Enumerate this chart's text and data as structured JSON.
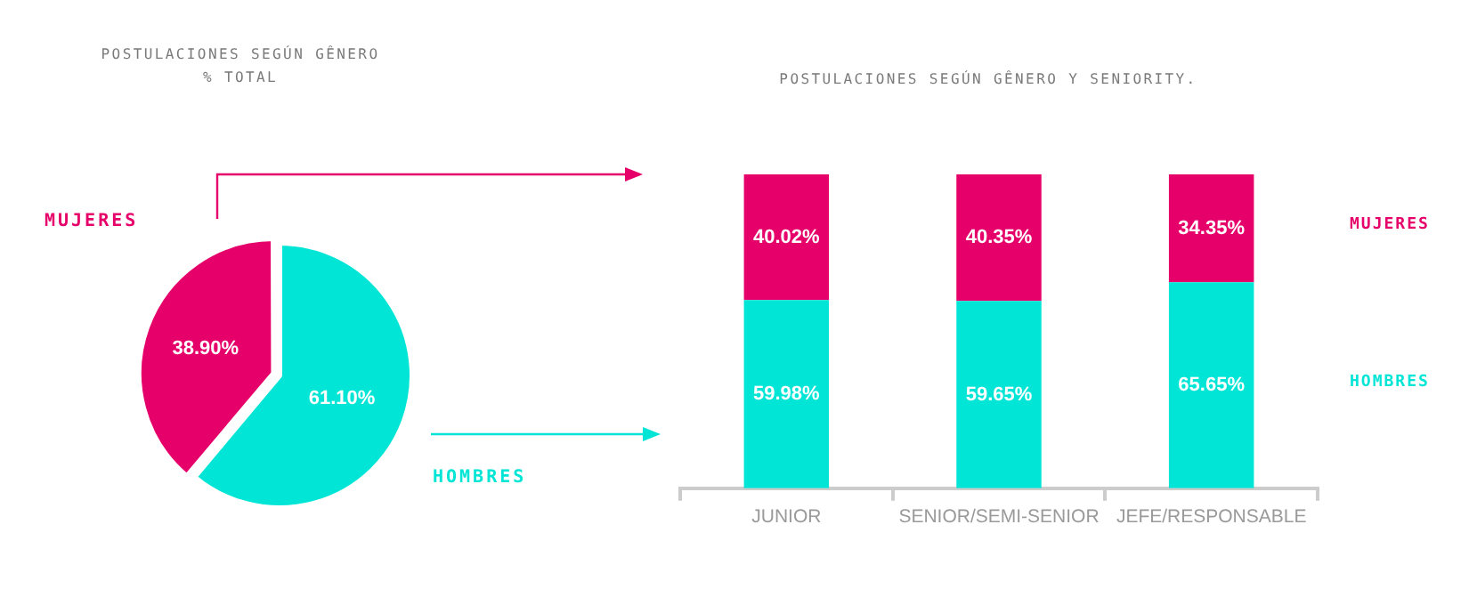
{
  "chart_data": [
    {
      "type": "pie",
      "title": "POSTULACIONES SEGÚN GÊNERO",
      "subtitle": "% TOTAL",
      "categories": [
        "MUJERES",
        "HOMBRES"
      ],
      "values": [
        38.9,
        61.1
      ],
      "colors": [
        "#e5006a",
        "#00e5d6"
      ],
      "value_labels": [
        "38.90%",
        "61.10%"
      ],
      "legend": false
    },
    {
      "type": "bar",
      "title": "POSTULACIONES SEGÚN GÊNERO Y SENIORITY.",
      "categories": [
        "JUNIOR",
        "SENIOR/SEMI-SENIOR",
        "JEFE/RESPONSABLE"
      ],
      "stacked": true,
      "tick_labels": "x",
      "grid": false,
      "legend": false,
      "series": [
        {
          "name": "HOMBRES",
          "color": "#00e5d6",
          "values": [
            59.98,
            59.65,
            65.65
          ],
          "value_labels": [
            "59.98%",
            "59.65%",
            "65.65%"
          ]
        },
        {
          "name": "MUJERES",
          "color": "#e5006a",
          "values": [
            40.02,
            40.35,
            34.35
          ],
          "value_labels": [
            "40.02%",
            "40.35%",
            "34.35%"
          ]
        }
      ]
    }
  ]
}
